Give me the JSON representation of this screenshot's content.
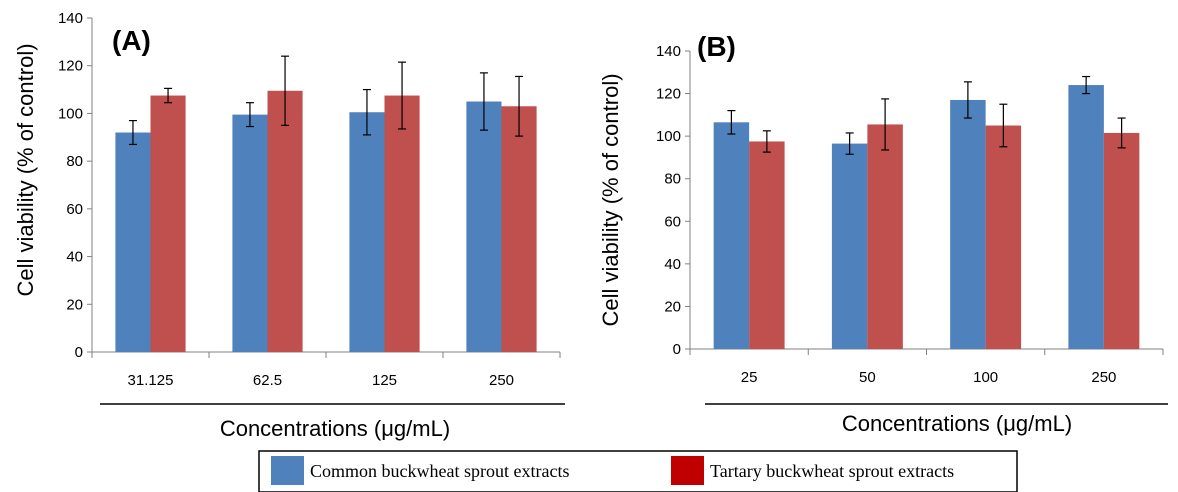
{
  "colors": {
    "common": "#4F81BD",
    "tartary": "#C0504D",
    "tartary_legend": "#C00000"
  },
  "legend": {
    "common_label": "Common buckwheat sprout extracts",
    "tartary_label": "Tartary buckwheat sprout extracts"
  },
  "chart_data": [
    {
      "type": "bar",
      "panel_label": "(A)",
      "categories": [
        "31.125",
        "62.5",
        "125",
        "250"
      ],
      "series": [
        {
          "name": "Common buckwheat sprout extracts",
          "values": [
            92,
            99.5,
            100.5,
            105
          ],
          "errors": [
            5,
            5,
            9.5,
            12
          ]
        },
        {
          "name": "Tartary buckwheat sprout extracts",
          "values": [
            107.5,
            109.5,
            107.5,
            103
          ],
          "errors": [
            3,
            14.5,
            14,
            12.5
          ]
        }
      ],
      "xlabel": "Concentrations (μg/mL)",
      "ylabel": "Cell viability (% of control)",
      "ylim": [
        0,
        140
      ],
      "yticks": [
        "0",
        "20",
        "40",
        "60",
        "80",
        "100",
        "120",
        "140"
      ]
    },
    {
      "type": "bar",
      "panel_label": "(B)",
      "categories": [
        "25",
        "50",
        "100",
        "250"
      ],
      "series": [
        {
          "name": "Common buckwheat sprout extracts",
          "values": [
            106.5,
            96.5,
            117,
            124
          ],
          "errors": [
            5.5,
            5,
            8.5,
            4
          ]
        },
        {
          "name": "Tartary buckwheat sprout extracts",
          "values": [
            97.5,
            105.5,
            105,
            101.5
          ],
          "errors": [
            5,
            12,
            10,
            7
          ]
        }
      ],
      "xlabel": "Concentrations (μg/mL)",
      "ylabel": "Cell viability (% of control)",
      "ylim": [
        0,
        140
      ],
      "yticks": [
        "0",
        "20",
        "40",
        "60",
        "80",
        "100",
        "120",
        "140"
      ]
    }
  ]
}
